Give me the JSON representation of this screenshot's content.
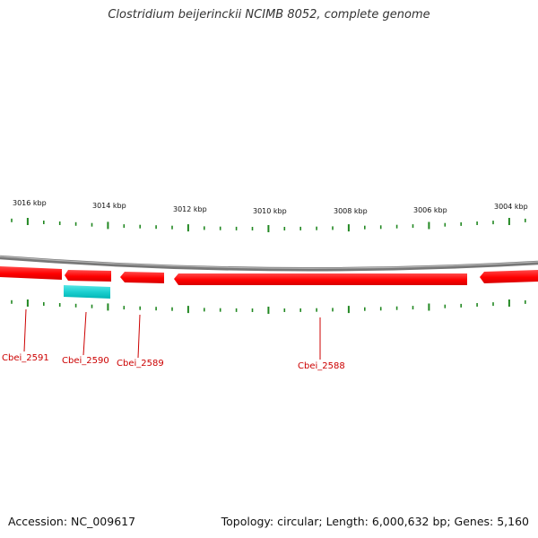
{
  "header": {
    "title": "Clostridium beijerinckii NCIMB 8052, complete genome"
  },
  "footer": {
    "accession": "Accession: NC_009617",
    "stats": "Topology: circular; Length: 6,000,632 bp; Genes: 5,160"
  },
  "map": {
    "scale_labels": [
      "3016 kbp",
      "3014 kbp",
      "3012 kbp",
      "3010 kbp",
      "3008 kbp",
      "3006 kbp",
      "3004 kbp"
    ],
    "genes": [
      {
        "name": "Cbei_2591",
        "strand": "-",
        "color": "#ff0000"
      },
      {
        "name": "Cbei_2590",
        "strand": "-",
        "color": "#ff0000"
      },
      {
        "name": "Cbei_2589",
        "strand": "-",
        "color": "#ff0000"
      },
      {
        "name": "Cbei_2588",
        "strand": "-",
        "color": "#ff0000"
      }
    ],
    "feature_colors": {
      "backbone": "#888888",
      "cds": "#ff0000",
      "other_feature": "#00cccc",
      "ticks": "#228822",
      "label_line": "#cc0000"
    }
  }
}
